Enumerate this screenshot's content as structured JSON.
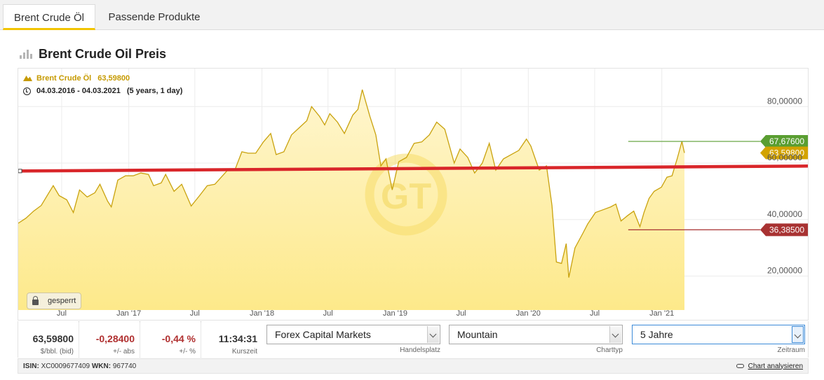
{
  "tabs": [
    {
      "label": "Brent Crude Öl",
      "active": true
    },
    {
      "label": "Passende Produkte",
      "active": false
    }
  ],
  "heading": {
    "title": "Brent Crude Oil Preis"
  },
  "legend": {
    "instrument": "Brent Crude Öl",
    "instrument_value": "63,59800",
    "range": "04.03.2016 - 04.03.2021",
    "range_detail": "(5 years, 1 day)"
  },
  "watermark": "GT",
  "lock_label": "gesperrt",
  "colors": {
    "area_line": "#c9a20e",
    "area_fill_top": "#fff1a8",
    "support_line": "#d9262a",
    "high": "#5a9e32",
    "current": "#d3a300",
    "low": "#a83232"
  },
  "chart_data": {
    "type": "area",
    "x_start": "2016-03-04",
    "x_end": "2021-03-04",
    "ylim": [
      8,
      88
    ],
    "yticks": [
      {
        "value": 20,
        "label": "20,00000"
      },
      {
        "value": 40,
        "label": "40,00000"
      },
      {
        "value": 60,
        "label": "60,00000"
      },
      {
        "value": 80,
        "label": "80,00000"
      }
    ],
    "xticks": [
      {
        "date": "2016-07-01",
        "label": "Jul"
      },
      {
        "date": "2017-01-01",
        "label": "Jan '17"
      },
      {
        "date": "2017-07-01",
        "label": "Jul"
      },
      {
        "date": "2018-01-01",
        "label": "Jan '18"
      },
      {
        "date": "2018-07-01",
        "label": "Jul"
      },
      {
        "date": "2019-01-01",
        "label": "Jan '19"
      },
      {
        "date": "2019-07-01",
        "label": "Jul"
      },
      {
        "date": "2020-01-01",
        "label": "Jan '20"
      },
      {
        "date": "2020-07-01",
        "label": "Jul"
      },
      {
        "date": "2021-01-01",
        "label": "Jan '21"
      }
    ],
    "series": [
      {
        "points": [
          [
            "2016-03-04",
            38.7
          ],
          [
            "2016-03-25",
            40.5
          ],
          [
            "2016-04-15",
            43.0
          ],
          [
            "2016-05-06",
            45.0
          ],
          [
            "2016-05-27",
            49.5
          ],
          [
            "2016-06-08",
            52.0
          ],
          [
            "2016-06-24",
            48.5
          ],
          [
            "2016-07-15",
            47.0
          ],
          [
            "2016-08-02",
            42.5
          ],
          [
            "2016-08-19",
            50.5
          ],
          [
            "2016-09-09",
            48.0
          ],
          [
            "2016-09-30",
            49.5
          ],
          [
            "2016-10-14",
            52.5
          ],
          [
            "2016-11-04",
            46.5
          ],
          [
            "2016-11-14",
            44.5
          ],
          [
            "2016-12-02",
            54.0
          ],
          [
            "2016-12-23",
            55.5
          ],
          [
            "2017-01-13",
            55.5
          ],
          [
            "2017-02-03",
            56.5
          ],
          [
            "2017-02-24",
            56.0
          ],
          [
            "2017-03-10",
            52.0
          ],
          [
            "2017-03-31",
            53.0
          ],
          [
            "2017-04-12",
            56.0
          ],
          [
            "2017-05-05",
            50.0
          ],
          [
            "2017-05-26",
            52.5
          ],
          [
            "2017-06-21",
            44.8
          ],
          [
            "2017-07-14",
            48.5
          ],
          [
            "2017-08-04",
            52.0
          ],
          [
            "2017-08-25",
            52.5
          ],
          [
            "2017-09-15",
            55.5
          ],
          [
            "2017-09-29",
            57.5
          ],
          [
            "2017-10-20",
            58.0
          ],
          [
            "2017-11-07",
            64.0
          ],
          [
            "2017-11-24",
            63.5
          ],
          [
            "2017-12-15",
            63.5
          ],
          [
            "2018-01-05",
            67.5
          ],
          [
            "2018-01-25",
            70.5
          ],
          [
            "2018-02-09",
            63.0
          ],
          [
            "2018-03-02",
            64.0
          ],
          [
            "2018-03-23",
            70.0
          ],
          [
            "2018-04-13",
            72.5
          ],
          [
            "2018-05-04",
            75.0
          ],
          [
            "2018-05-17",
            80.0
          ],
          [
            "2018-06-08",
            76.5
          ],
          [
            "2018-06-22",
            73.5
          ],
          [
            "2018-07-06",
            77.5
          ],
          [
            "2018-07-27",
            74.5
          ],
          [
            "2018-08-15",
            70.5
          ],
          [
            "2018-09-07",
            77.0
          ],
          [
            "2018-09-21",
            79.0
          ],
          [
            "2018-10-03",
            86.0
          ],
          [
            "2018-10-24",
            76.5
          ],
          [
            "2018-11-09",
            70.0
          ],
          [
            "2018-11-23",
            59.0
          ],
          [
            "2018-12-07",
            61.5
          ],
          [
            "2018-12-24",
            50.5
          ],
          [
            "2019-01-11",
            60.5
          ],
          [
            "2019-02-01",
            62.0
          ],
          [
            "2019-02-22",
            67.0
          ],
          [
            "2019-03-15",
            67.5
          ],
          [
            "2019-04-05",
            70.0
          ],
          [
            "2019-04-25",
            74.5
          ],
          [
            "2019-05-17",
            72.0
          ],
          [
            "2019-06-12",
            60.0
          ],
          [
            "2019-06-28",
            65.0
          ],
          [
            "2019-07-19",
            62.0
          ],
          [
            "2019-08-07",
            56.5
          ],
          [
            "2019-08-28",
            60.0
          ],
          [
            "2019-09-16",
            67.0
          ],
          [
            "2019-10-04",
            57.5
          ],
          [
            "2019-10-25",
            61.5
          ],
          [
            "2019-11-15",
            63.0
          ],
          [
            "2019-12-06",
            64.5
          ],
          [
            "2019-12-27",
            68.5
          ],
          [
            "2020-01-08",
            66.0
          ],
          [
            "2020-01-31",
            57.5
          ],
          [
            "2020-02-20",
            59.0
          ],
          [
            "2020-03-06",
            45.0
          ],
          [
            "2020-03-18",
            25.0
          ],
          [
            "2020-04-01",
            24.5
          ],
          [
            "2020-04-14",
            31.5
          ],
          [
            "2020-04-21",
            19.5
          ],
          [
            "2020-05-08",
            30.0
          ],
          [
            "2020-05-29",
            35.0
          ],
          [
            "2020-06-12",
            38.5
          ],
          [
            "2020-07-03",
            42.5
          ],
          [
            "2020-07-24",
            43.5
          ],
          [
            "2020-08-14",
            44.5
          ],
          [
            "2020-08-28",
            45.5
          ],
          [
            "2020-09-11",
            39.5
          ],
          [
            "2020-09-30",
            41.5
          ],
          [
            "2020-10-16",
            43.0
          ],
          [
            "2020-11-02",
            37.5
          ],
          [
            "2020-11-13",
            42.5
          ],
          [
            "2020-11-27",
            47.5
          ],
          [
            "2020-12-11",
            50.0
          ],
          [
            "2020-12-31",
            51.5
          ],
          [
            "2021-01-15",
            55.0
          ],
          [
            "2021-01-29",
            55.5
          ],
          [
            "2021-02-12",
            61.5
          ],
          [
            "2021-02-25",
            67.7
          ],
          [
            "2021-03-04",
            63.6
          ]
        ]
      }
    ],
    "support_line": [
      [
        "2016-03-04",
        57.2
      ],
      [
        "2021-03-04",
        59.0
      ]
    ],
    "markers": [
      {
        "type": "high",
        "value": 67.676,
        "label": "67,67600",
        "from": "2020-10-01"
      },
      {
        "type": "current",
        "value": 63.598,
        "label": "63,59800"
      },
      {
        "type": "low",
        "value": 36.385,
        "label": "36,38500",
        "from": "2020-10-01"
      }
    ]
  },
  "stats": [
    {
      "value": "63,59800",
      "label": "$/bbl. (bid)",
      "neg": false
    },
    {
      "value": "-0,28400",
      "label": "+/- abs",
      "neg": true
    },
    {
      "value": "-0,44 %",
      "label": "+/- %",
      "neg": true
    },
    {
      "value": "11:34:31",
      "label": "Kurszeit",
      "neg": false
    }
  ],
  "selects": [
    {
      "value": "Forex Capital Markets",
      "label": "Handelsplatz"
    },
    {
      "value": "Mountain",
      "label": "Charttyp"
    },
    {
      "value": "5 Jahre",
      "label": "Zeitraum"
    }
  ],
  "footer": {
    "isin_label": "ISIN:",
    "isin": "XC0009677409",
    "wkn_label": "WKN:",
    "wkn": "967740",
    "link": "Chart analysieren"
  }
}
